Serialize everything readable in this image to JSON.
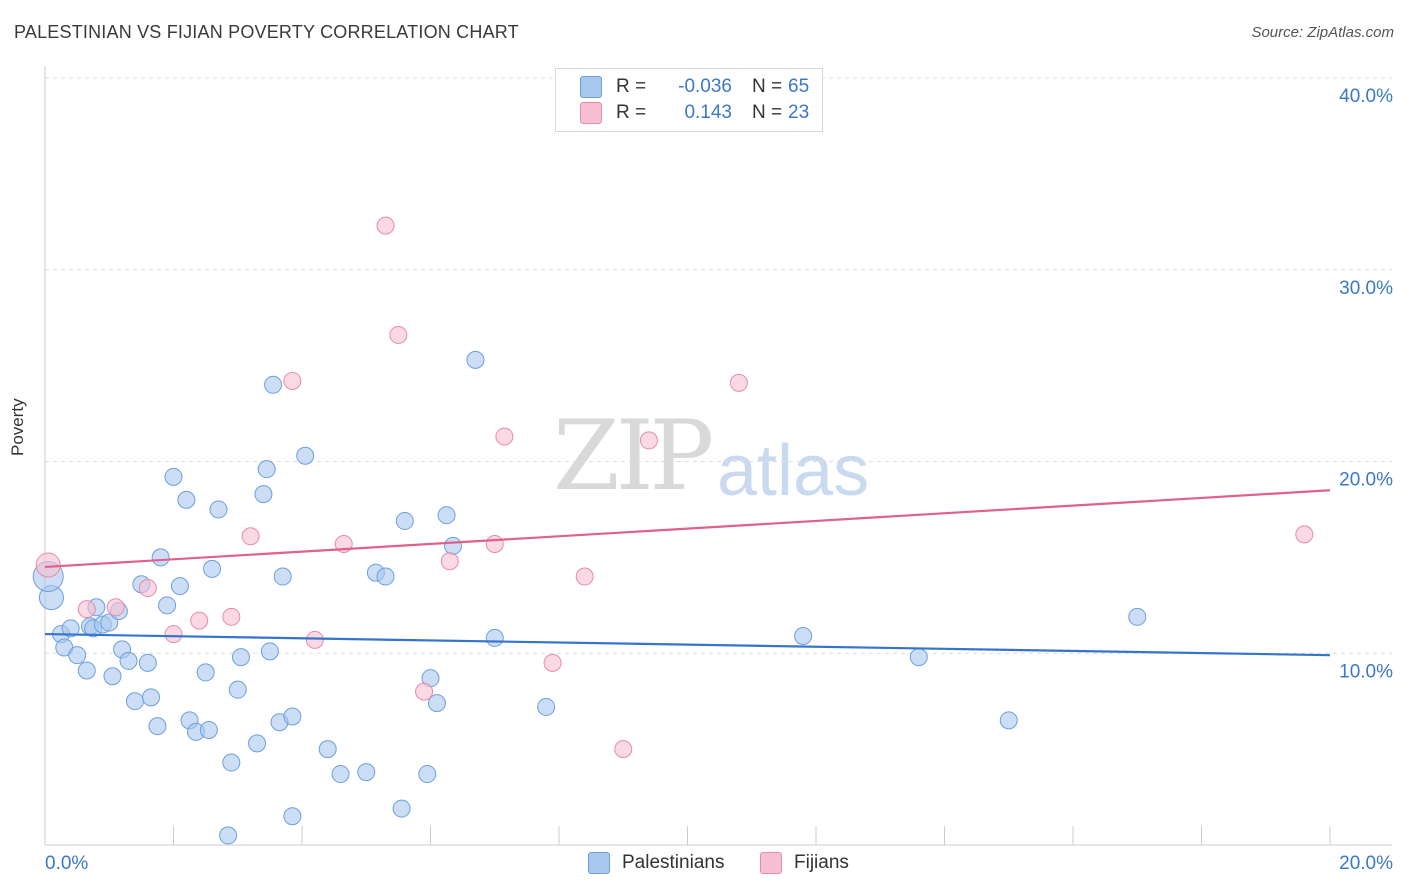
{
  "title": "PALESTINIAN VS FIJIAN POVERTY CORRELATION CHART",
  "source": "Source: ZipAtlas.com",
  "watermark": {
    "zip": "ZIP",
    "atlas": "atlas"
  },
  "colors": {
    "palestinians": "#a9c8f0",
    "palestinians_edge": "#6d9fdc",
    "palestinians_line": "#3474cc",
    "fijians": "#f6bfd2",
    "fijians_edge": "#e88aac",
    "fijians_line": "#e0608f",
    "tick_label": "#3a78c9",
    "grid": "#dddddd"
  },
  "legend": {
    "rows": [
      {
        "r_label": "R =",
        "r_value": "-0.036",
        "n_label": "N =",
        "n_value": "65",
        "color": "#a9c8f0"
      },
      {
        "r_label": "R =",
        "r_value": "0.143",
        "n_label": "N =",
        "n_value": "23",
        "color": "#f6bfd2"
      }
    ]
  },
  "bottom_legend": [
    {
      "label": "Palestinians",
      "color": "#a9c8f0"
    },
    {
      "label": "Fijians",
      "color": "#f6bfd2"
    }
  ],
  "chart_data": {
    "type": "scatter",
    "title": "PALESTINIAN VS FIJIAN POVERTY CORRELATION CHART",
    "xlabel": "",
    "ylabel": "Poverty",
    "xlim": [
      0,
      20
    ],
    "ylim": [
      0,
      40
    ],
    "x_tick_labels": [
      "0.0%",
      "20.0%"
    ],
    "y_ticks": [
      10,
      20,
      30,
      40
    ],
    "y_tick_labels": [
      "10.0%",
      "20.0%",
      "30.0%",
      "40.0%"
    ],
    "grid": true,
    "series": [
      {
        "name": "Palestinians",
        "r": -0.036,
        "n": 65,
        "trend": {
          "x": [
            0,
            20
          ],
          "y": [
            11.0,
            9.9
          ]
        },
        "points": [
          [
            0.1,
            12.9
          ],
          [
            0.25,
            11.0
          ],
          [
            0.3,
            10.3
          ],
          [
            0.4,
            11.3
          ],
          [
            0.5,
            9.9
          ],
          [
            0.65,
            9.1
          ],
          [
            0.7,
            11.4
          ],
          [
            0.75,
            11.3
          ],
          [
            0.8,
            12.4
          ],
          [
            0.9,
            11.5
          ],
          [
            1.0,
            11.6
          ],
          [
            1.05,
            8.8
          ],
          [
            1.15,
            12.2
          ],
          [
            1.2,
            10.2
          ],
          [
            1.3,
            9.6
          ],
          [
            1.4,
            7.5
          ],
          [
            1.5,
            13.6
          ],
          [
            1.6,
            9.5
          ],
          [
            1.65,
            7.7
          ],
          [
            1.75,
            6.2
          ],
          [
            1.8,
            15.0
          ],
          [
            1.9,
            12.5
          ],
          [
            2.0,
            19.2
          ],
          [
            2.1,
            13.5
          ],
          [
            2.2,
            18.0
          ],
          [
            2.25,
            6.5
          ],
          [
            2.35,
            5.9
          ],
          [
            2.5,
            9.0
          ],
          [
            2.55,
            6.0
          ],
          [
            2.6,
            14.4
          ],
          [
            2.7,
            17.5
          ],
          [
            2.85,
            0.5
          ],
          [
            2.9,
            4.3
          ],
          [
            3.0,
            8.1
          ],
          [
            3.05,
            9.8
          ],
          [
            3.3,
            5.3
          ],
          [
            3.4,
            18.3
          ],
          [
            3.45,
            19.6
          ],
          [
            3.5,
            10.1
          ],
          [
            3.55,
            24.0
          ],
          [
            3.65,
            6.4
          ],
          [
            3.7,
            14.0
          ],
          [
            3.85,
            6.7
          ],
          [
            3.85,
            1.5
          ],
          [
            4.05,
            20.3
          ],
          [
            4.4,
            5.0
          ],
          [
            4.6,
            3.7
          ],
          [
            5.0,
            3.8
          ],
          [
            5.15,
            14.2
          ],
          [
            5.3,
            14.0
          ],
          [
            5.55,
            1.9
          ],
          [
            5.6,
            16.9
          ],
          [
            5.95,
            3.7
          ],
          [
            6.0,
            8.7
          ],
          [
            6.1,
            7.4
          ],
          [
            6.25,
            17.2
          ],
          [
            6.35,
            15.6
          ],
          [
            6.7,
            25.3
          ],
          [
            7.0,
            10.8
          ],
          [
            7.8,
            7.2
          ],
          [
            11.8,
            10.9
          ],
          [
            13.6,
            9.8
          ],
          [
            15.0,
            6.5
          ],
          [
            17.0,
            11.9
          ],
          [
            0.05,
            14.0
          ]
        ]
      },
      {
        "name": "Fijians",
        "r": 0.143,
        "n": 23,
        "trend": {
          "x": [
            0,
            20
          ],
          "y": [
            14.5,
            18.5
          ]
        },
        "points": [
          [
            0.05,
            14.6
          ],
          [
            0.65,
            12.3
          ],
          [
            1.1,
            12.4
          ],
          [
            1.6,
            13.4
          ],
          [
            2.0,
            11.0
          ],
          [
            2.4,
            11.7
          ],
          [
            2.9,
            11.9
          ],
          [
            3.2,
            16.1
          ],
          [
            3.85,
            24.2
          ],
          [
            4.2,
            10.7
          ],
          [
            4.65,
            15.7
          ],
          [
            5.3,
            32.3
          ],
          [
            5.5,
            26.6
          ],
          [
            5.9,
            8.0
          ],
          [
            6.3,
            14.8
          ],
          [
            7.0,
            15.7
          ],
          [
            7.15,
            21.3
          ],
          [
            7.9,
            9.5
          ],
          [
            8.4,
            14.0
          ],
          [
            9.0,
            5.0
          ],
          [
            9.4,
            21.1
          ],
          [
            10.8,
            24.1
          ],
          [
            19.6,
            16.2
          ]
        ]
      }
    ]
  }
}
